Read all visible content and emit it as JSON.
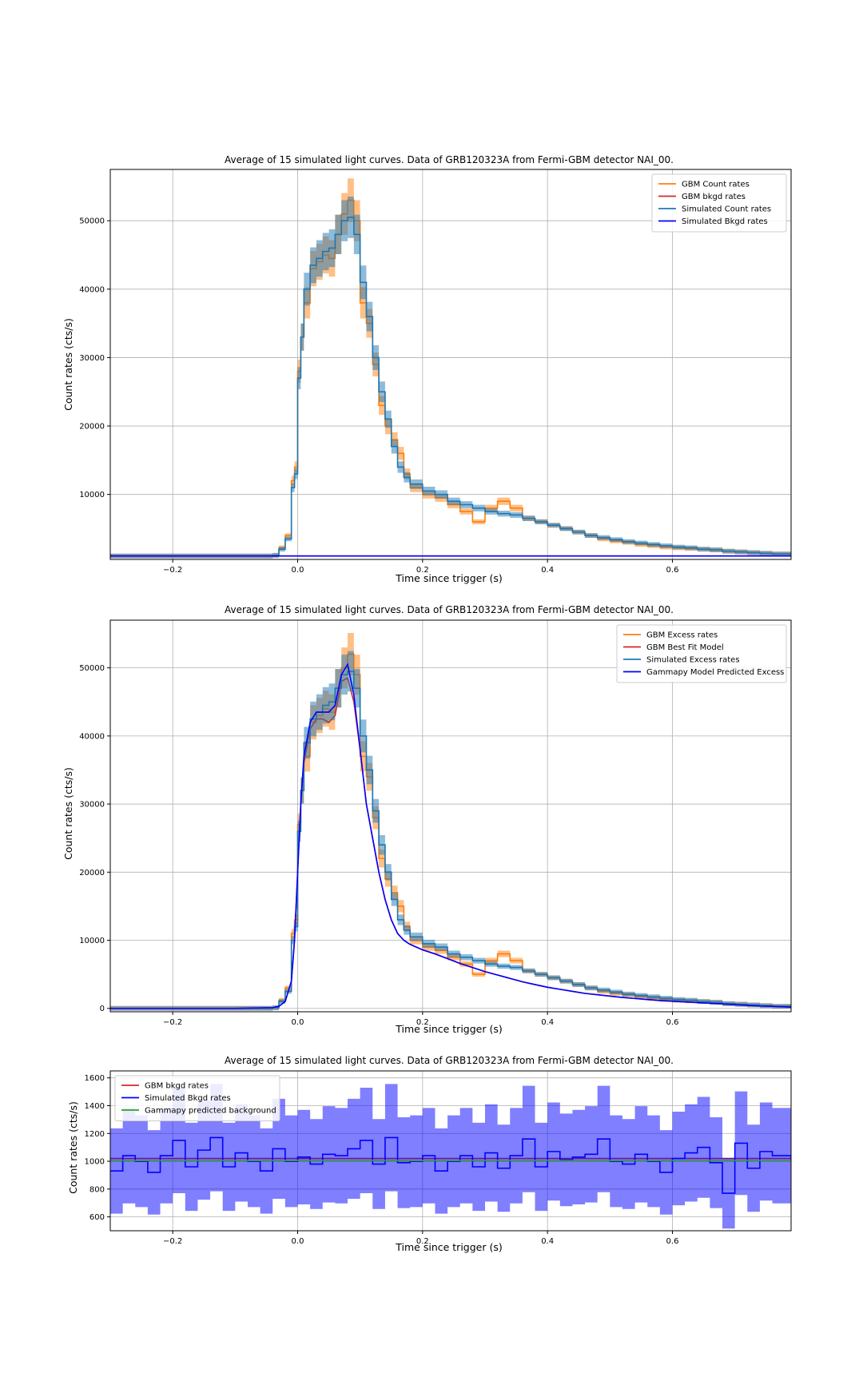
{
  "figure": {
    "background": "#ffffff"
  },
  "colors": {
    "gbm": "#ff7f0e",
    "gbm_band": "#ff7f0e",
    "gbm_model": "#d62728",
    "sim": "#1f77b4",
    "sim_band": "#1f77b4",
    "sim_bkg": "#0000ff",
    "gammapy_bkg": "#2ca02c",
    "grid": "#b0b0b0"
  },
  "chart_data": [
    {
      "type": "line",
      "title": "Average of 15 simulated light curves. Data of GRB120323A from Fermi-GBM detector NAI_00.",
      "xlabel": "Time since trigger (s)",
      "ylabel": "Count rates (cts/s)",
      "xlim": [
        -0.3,
        0.79
      ],
      "ylim": [
        500,
        57500
      ],
      "xticks": [
        -0.2,
        0.0,
        0.2,
        0.4,
        0.6
      ],
      "xtick_labels": [
        "−0.2",
        "0.0",
        "0.2",
        "0.4",
        "0.6"
      ],
      "yticks": [
        10000,
        20000,
        30000,
        40000,
        50000
      ],
      "ytick_labels": [
        "10000",
        "20000",
        "30000",
        "40000",
        "50000"
      ],
      "grid": true,
      "legend_position": "upper right",
      "x": [
        -0.3,
        -0.1,
        -0.04,
        -0.03,
        -0.02,
        -0.01,
        -0.005,
        0.0,
        0.005,
        0.01,
        0.02,
        0.03,
        0.04,
        0.05,
        0.06,
        0.07,
        0.08,
        0.09,
        0.1,
        0.11,
        0.12,
        0.13,
        0.14,
        0.15,
        0.16,
        0.17,
        0.18,
        0.2,
        0.22,
        0.24,
        0.26,
        0.28,
        0.3,
        0.32,
        0.34,
        0.36,
        0.38,
        0.4,
        0.42,
        0.44,
        0.46,
        0.48,
        0.5,
        0.52,
        0.54,
        0.56,
        0.58,
        0.6,
        0.62,
        0.64,
        0.66,
        0.68,
        0.7,
        0.72,
        0.74,
        0.76,
        0.79
      ],
      "series": [
        {
          "name": "GBM Count rates",
          "style": "step+band",
          "color": "#ff7f0e",
          "values": [
            1000,
            1000,
            1100,
            2200,
            4000,
            12000,
            14000,
            28000,
            33000,
            38000,
            43000,
            44000,
            45000,
            44500,
            48000,
            51000,
            53000,
            50000,
            38000,
            35000,
            29000,
            23000,
            20000,
            18000,
            16000,
            13000,
            11000,
            10000,
            9500,
            8500,
            7500,
            6000,
            8000,
            9000,
            8000,
            6500,
            6000,
            5500,
            5000,
            4500,
            4000,
            3500,
            3200,
            3000,
            2700,
            2500,
            2300,
            2200,
            2100,
            2000,
            1900,
            1700,
            1600,
            1500,
            1400,
            1300,
            1200
          ]
        },
        {
          "name": "GBM bkgd rates",
          "style": "line",
          "color": "#d62728",
          "values": [
            1000,
            1000,
            1000,
            1000,
            1000,
            1000,
            1000,
            1000,
            1000,
            1000,
            1000,
            1000,
            1000,
            1000,
            1000,
            1000,
            1000,
            1000,
            1000,
            1000,
            1000,
            1000,
            1000,
            1000,
            1000,
            1000,
            1000,
            1000,
            1000,
            1000,
            1000,
            1000,
            1000,
            1000,
            1000,
            1000,
            1000,
            1000,
            1000,
            1000,
            1000,
            1000,
            1000,
            1000,
            1000,
            1000,
            1000,
            1000,
            1000,
            1000,
            1000,
            1000,
            1000,
            1000,
            1000,
            1000,
            1000
          ]
        },
        {
          "name": "Simulated Count rates",
          "style": "step+band",
          "color": "#1f77b4",
          "values": [
            1000,
            1000,
            1100,
            2000,
            3500,
            11000,
            13000,
            27000,
            33000,
            40000,
            43500,
            44500,
            45500,
            46000,
            48000,
            50000,
            50500,
            48000,
            41000,
            36000,
            30000,
            25000,
            21000,
            17000,
            14000,
            12500,
            11500,
            10500,
            10000,
            9000,
            8500,
            8000,
            7500,
            7200,
            7000,
            6500,
            6000,
            5500,
            5000,
            4500,
            4000,
            3700,
            3400,
            3100,
            2900,
            2700,
            2500,
            2300,
            2200,
            2000,
            1900,
            1700,
            1600,
            1500,
            1400,
            1300,
            1200
          ]
        },
        {
          "name": "Simulated Bkgd rates",
          "style": "step",
          "color": "#0000ff",
          "values": [
            1000,
            1000,
            1000,
            1000,
            1000,
            1000,
            1000,
            1000,
            1000,
            1000,
            1000,
            1000,
            1000,
            1000,
            1000,
            1000,
            1000,
            1000,
            1000,
            1000,
            1000,
            1000,
            1000,
            1000,
            1000,
            1000,
            1000,
            1000,
            1000,
            1000,
            1000,
            1000,
            1000,
            1000,
            1000,
            1000,
            1000,
            1000,
            1000,
            1000,
            1000,
            1000,
            1000,
            1000,
            1000,
            1000,
            1000,
            1000,
            1000,
            1000,
            1000,
            1000,
            1000,
            1000,
            1000,
            1000,
            1000
          ]
        }
      ]
    },
    {
      "type": "line",
      "title": "Average of 15 simulated light curves. Data of GRB120323A from Fermi-GBM detector NAI_00.",
      "xlabel": "Time since trigger (s)",
      "ylabel": "Count rates (cts/s)",
      "xlim": [
        -0.3,
        0.79
      ],
      "ylim": [
        -500,
        57000
      ],
      "xticks": [
        -0.2,
        0.0,
        0.2,
        0.4,
        0.6
      ],
      "xtick_labels": [
        "−0.2",
        "0.0",
        "0.2",
        "0.4",
        "0.6"
      ],
      "yticks": [
        0,
        10000,
        20000,
        30000,
        40000,
        50000
      ],
      "ytick_labels": [
        "0",
        "10000",
        "20000",
        "30000",
        "40000",
        "50000"
      ],
      "grid": true,
      "legend_position": "upper right",
      "x": [
        -0.3,
        -0.1,
        -0.04,
        -0.03,
        -0.02,
        -0.01,
        -0.005,
        0.0,
        0.005,
        0.01,
        0.02,
        0.03,
        0.04,
        0.05,
        0.06,
        0.07,
        0.08,
        0.09,
        0.1,
        0.11,
        0.12,
        0.13,
        0.14,
        0.15,
        0.16,
        0.17,
        0.18,
        0.2,
        0.22,
        0.24,
        0.26,
        0.28,
        0.3,
        0.32,
        0.34,
        0.36,
        0.38,
        0.4,
        0.42,
        0.44,
        0.46,
        0.48,
        0.5,
        0.52,
        0.54,
        0.56,
        0.58,
        0.6,
        0.62,
        0.64,
        0.66,
        0.68,
        0.7,
        0.72,
        0.74,
        0.76,
        0.79
      ],
      "series": [
        {
          "name": "GBM Excess rates",
          "style": "step+band",
          "color": "#ff7f0e",
          "values": [
            0,
            0,
            100,
            1200,
            3000,
            11000,
            13000,
            27000,
            32000,
            37000,
            42000,
            43000,
            44000,
            43500,
            47000,
            50000,
            52000,
            49000,
            37000,
            34000,
            28000,
            22000,
            19000,
            17000,
            15000,
            12000,
            10000,
            9000,
            8500,
            7500,
            6500,
            5000,
            7000,
            8000,
            7000,
            5500,
            5000,
            4500,
            4000,
            3500,
            3000,
            2500,
            2200,
            2000,
            1700,
            1500,
            1300,
            1200,
            1100,
            1000,
            900,
            700,
            600,
            500,
            400,
            300,
            200
          ]
        },
        {
          "name": "GBM Best Fit Model",
          "style": "line",
          "color": "#d62728",
          "values": [
            0,
            0,
            100,
            300,
            1000,
            4000,
            10000,
            20000,
            30000,
            36000,
            41000,
            42500,
            42500,
            42000,
            43000,
            48000,
            48500,
            45000,
            38000,
            30000,
            25000,
            20000,
            16000,
            13000,
            11000,
            10000,
            9400,
            8600,
            8000,
            7300,
            6600,
            6000,
            5400,
            4900,
            4400,
            3900,
            3500,
            3100,
            2800,
            2500,
            2200,
            2000,
            1800,
            1600,
            1450,
            1300,
            1150,
            1050,
            950,
            850,
            750,
            650,
            550,
            450,
            350,
            300,
            200
          ]
        },
        {
          "name": "Simulated Excess rates",
          "style": "step+band",
          "color": "#1f77b4",
          "values": [
            0,
            0,
            100,
            1000,
            2500,
            10000,
            12000,
            26000,
            32000,
            39000,
            42500,
            43500,
            44500,
            45000,
            47000,
            49000,
            49500,
            47000,
            40000,
            35000,
            29000,
            24000,
            20000,
            16000,
            13000,
            11500,
            10500,
            9500,
            9000,
            8000,
            7500,
            7000,
            6500,
            6200,
            6000,
            5500,
            5000,
            4500,
            4000,
            3500,
            3000,
            2700,
            2400,
            2100,
            1900,
            1700,
            1500,
            1300,
            1200,
            1000,
            900,
            700,
            600,
            500,
            400,
            300,
            200
          ]
        },
        {
          "name": "Gammapy Model Predicted Excess",
          "style": "line",
          "color": "#0000ff",
          "values": [
            0,
            0,
            100,
            300,
            1000,
            4000,
            10000,
            20000,
            30000,
            37000,
            42000,
            43500,
            43500,
            43500,
            44500,
            49000,
            50500,
            46000,
            38000,
            30000,
            25000,
            20000,
            16000,
            13000,
            11000,
            10000,
            9400,
            8600,
            8000,
            7300,
            6600,
            6000,
            5400,
            4900,
            4400,
            3900,
            3500,
            3100,
            2800,
            2500,
            2200,
            2000,
            1800,
            1600,
            1450,
            1300,
            1150,
            1050,
            950,
            850,
            750,
            650,
            550,
            450,
            350,
            300,
            200
          ]
        }
      ]
    },
    {
      "type": "line",
      "title": "Average of 15 simulated light curves. Data of GRB120323A from Fermi-GBM detector NAI_00.",
      "xlabel": "Time since trigger (s)",
      "ylabel": "Count rates (cts/s)",
      "xlim": [
        -0.3,
        0.79
      ],
      "ylim": [
        500,
        1650
      ],
      "xticks": [
        -0.2,
        0.0,
        0.2,
        0.4,
        0.6
      ],
      "xtick_labels": [
        "−0.2",
        "0.0",
        "0.2",
        "0.4",
        "0.6"
      ],
      "yticks": [
        600,
        800,
        1000,
        1200,
        1400,
        1600
      ],
      "ytick_labels": [
        "600",
        "800",
        "1000",
        "1200",
        "1400",
        "1600"
      ],
      "grid": true,
      "legend_position": "upper left",
      "x": [
        -0.3,
        -0.28,
        -0.26,
        -0.24,
        -0.22,
        -0.2,
        -0.18,
        -0.16,
        -0.14,
        -0.12,
        -0.1,
        -0.08,
        -0.06,
        -0.04,
        -0.02,
        0.0,
        0.02,
        0.04,
        0.06,
        0.08,
        0.1,
        0.12,
        0.14,
        0.16,
        0.18,
        0.2,
        0.22,
        0.24,
        0.26,
        0.28,
        0.3,
        0.32,
        0.34,
        0.36,
        0.38,
        0.4,
        0.42,
        0.44,
        0.46,
        0.48,
        0.5,
        0.52,
        0.54,
        0.56,
        0.58,
        0.6,
        0.62,
        0.64,
        0.66,
        0.68,
        0.7,
        0.72,
        0.74,
        0.76,
        0.79
      ],
      "series": [
        {
          "name": "GBM bkgd rates",
          "style": "line",
          "color": "#d62728",
          "values": [
            1020,
            1020,
            1020,
            1020,
            1020,
            1020,
            1020,
            1020,
            1020,
            1020,
            1020,
            1020,
            1020,
            1020,
            1020,
            1020,
            1020,
            1020,
            1020,
            1020,
            1020,
            1020,
            1020,
            1020,
            1020,
            1020,
            1020,
            1020,
            1020,
            1020,
            1020,
            1020,
            1020,
            1020,
            1020,
            1020,
            1020,
            1020,
            1020,
            1020,
            1020,
            1020,
            1020,
            1020,
            1020,
            1020,
            1020,
            1020,
            1020,
            1020,
            1020,
            1020,
            1020,
            1020,
            1020
          ]
        },
        {
          "name": "Simulated Bkgd rates",
          "style": "step+band",
          "color": "#0000ff",
          "values": [
            930,
            1040,
            1000,
            920,
            1040,
            1150,
            960,
            1080,
            1170,
            960,
            1060,
            1000,
            930,
            1090,
            1000,
            1030,
            980,
            1050,
            1040,
            1090,
            1150,
            980,
            1170,
            990,
            1000,
            1040,
            930,
            1000,
            1040,
            960,
            1060,
            950,
            1040,
            1160,
            960,
            1070,
            1010,
            1030,
            1050,
            1160,
            1000,
            980,
            1050,
            1000,
            920,
            1020,
            1060,
            1100,
            990,
            770,
            1130,
            950,
            1070,
            1040,
            1000
          ]
        },
        {
          "name": "Gammapy predicted background",
          "style": "line",
          "color": "#2ca02c",
          "values": [
            1005,
            1005,
            1005,
            1005,
            1005,
            1005,
            1005,
            1005,
            1005,
            1005,
            1005,
            1005,
            1005,
            1005,
            1005,
            1005,
            1005,
            1005,
            1005,
            1005,
            1005,
            1005,
            1005,
            1005,
            1005,
            1005,
            1005,
            1005,
            1005,
            1005,
            1005,
            1005,
            1005,
            1005,
            1005,
            1005,
            1005,
            1005,
            1005,
            1005,
            1005,
            1005,
            1005,
            1005,
            1005,
            1005,
            1005,
            1005,
            1005,
            1005,
            1005,
            1005,
            1005,
            1005,
            1005
          ]
        }
      ]
    }
  ]
}
